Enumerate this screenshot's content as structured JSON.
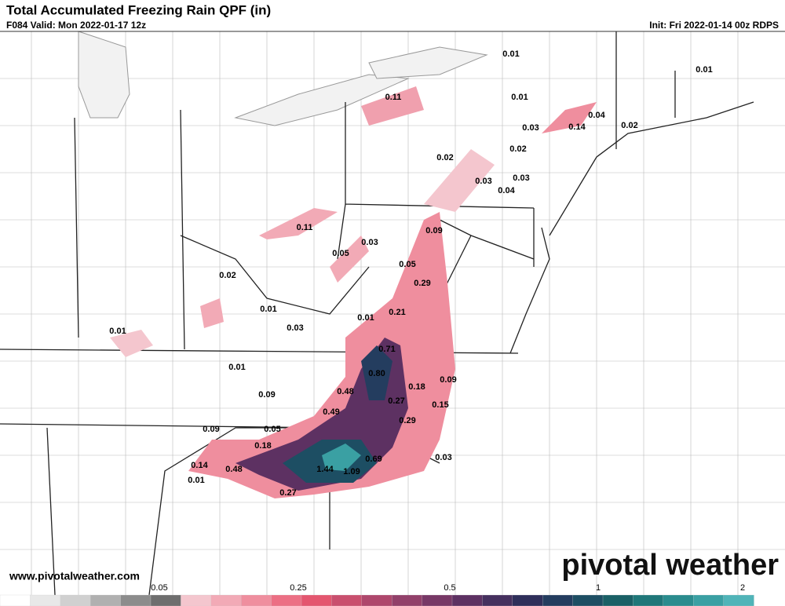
{
  "header": {
    "title": "Total Accumulated Freezing Rain QPF (in)",
    "valid": "F084 Valid: Mon 2022-01-17 12z",
    "init": "Init: Fri 2022-01-14 00z RDPS"
  },
  "map": {
    "labels": [
      "0.01",
      "0.01",
      "0.11",
      "0.01",
      "0.04",
      "0.02",
      "0.03",
      "0.14",
      "0.02",
      "0.02",
      "0.03",
      "0.03",
      "0.04",
      "0.11",
      "0.09",
      "0.05",
      "0.03",
      "0.05",
      "0.02",
      "0.29",
      "0.21",
      "0.01",
      "0.01",
      "0.03",
      "0.01",
      "0.71",
      "0.01",
      "0.80",
      "0.09",
      "0.18",
      "0.48",
      "0.09",
      "0.27",
      "0.15",
      "0.49",
      "0.29",
      "0.09",
      "0.05",
      "0.18",
      "0.69",
      "0.03",
      "0.14",
      "0.48",
      "1.44",
      "1.09",
      "0.01",
      "0.27"
    ]
  },
  "footer": {
    "website": "www.pivotalweather.com",
    "logo": "pivotal weather"
  },
  "colorbar": {
    "labels": [
      "0.05",
      "0.25",
      "0.5",
      "1",
      "2"
    ],
    "colors": [
      "#ffffff",
      "#e8e8e8",
      "#d0d0d0",
      "#b0b0b0",
      "#8c8c8c",
      "#6e6e6e",
      "#f4c6ce",
      "#f2aab6",
      "#ef8e9e",
      "#ec6f84",
      "#e4566f",
      "#c94f6e",
      "#ae476c",
      "#92406a",
      "#773866",
      "#5d3162",
      "#45305e",
      "#2f2f5a",
      "#243d5f",
      "#1d4e63",
      "#1a6066",
      "#1f7779",
      "#2a8c8e",
      "#3aa0a3",
      "#50b4b8"
    ]
  }
}
